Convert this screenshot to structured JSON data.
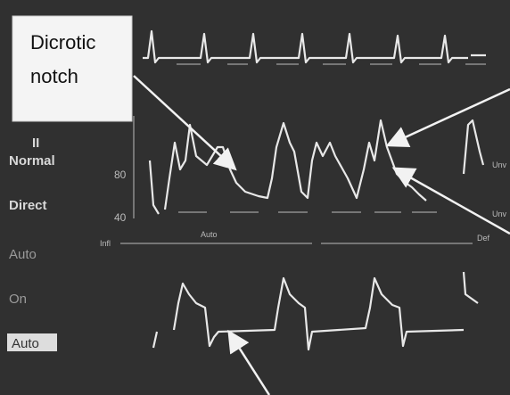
{
  "callout": {
    "lines": [
      "Dicrotic",
      "notch"
    ]
  },
  "left_panel": {
    "labels": [
      "II",
      "Normal",
      "Direct",
      "Auto",
      "On",
      "Auto"
    ]
  },
  "pressure_axis": {
    "ticks": [
      "80",
      "40"
    ]
  },
  "scale_bar": {
    "labels": [
      "Infl",
      "Auto",
      "Def"
    ]
  },
  "right_labels": [
    "Unv",
    "Unv"
  ]
}
